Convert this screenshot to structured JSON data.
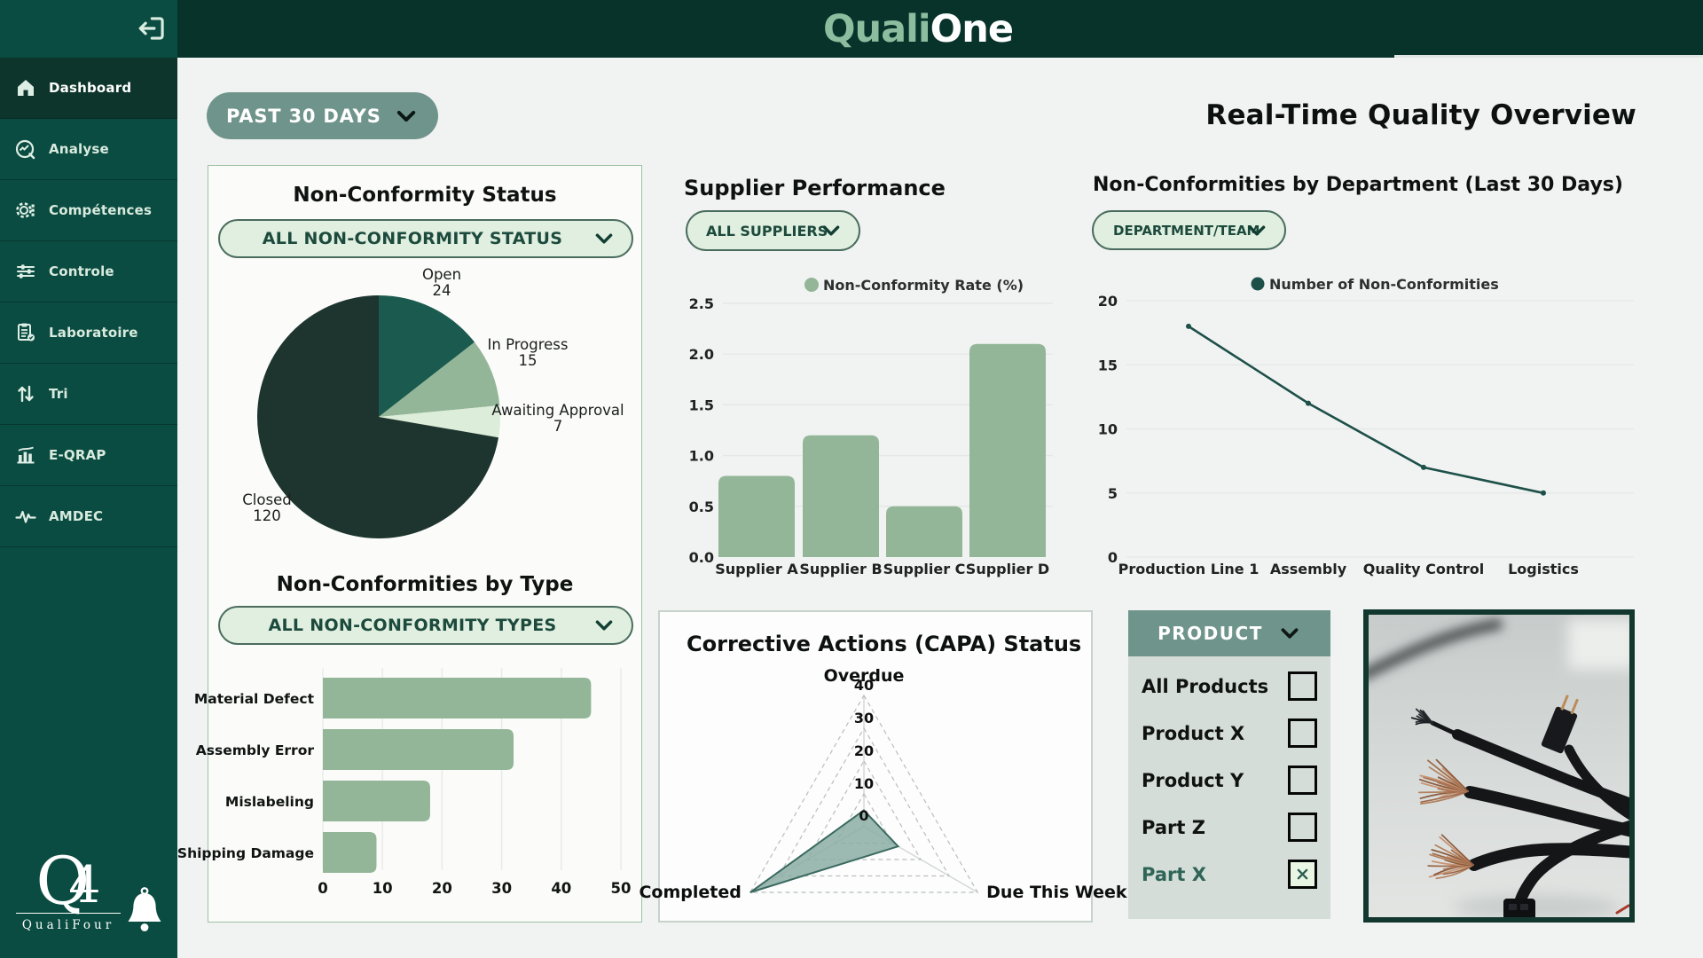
{
  "brand": {
    "part1": "Quali",
    "part2": "One"
  },
  "toolbar": {
    "time_filter": "PAST 30 DAYS",
    "page_title": "Real-Time Quality Overview"
  },
  "sidebar": {
    "items": [
      {
        "label": "Dashboard",
        "icon": "home",
        "active": true
      },
      {
        "label": "Analyse",
        "icon": "analytics",
        "active": false
      },
      {
        "label": "Compétences",
        "icon": "gear",
        "active": false
      },
      {
        "label": "Controle",
        "icon": "sliders",
        "active": false
      },
      {
        "label": "Laboratoire",
        "icon": "clipboard",
        "active": false
      },
      {
        "label": "Tri",
        "icon": "sort",
        "active": false
      },
      {
        "label": "E-QRAP",
        "icon": "chart",
        "active": false
      },
      {
        "label": "AMDEC",
        "icon": "pulse",
        "active": false
      }
    ],
    "footer_logo": {
      "q": "Q",
      "four": "4",
      "name": "QualiFour"
    }
  },
  "product_filter": {
    "header": "PRODUCT",
    "options": [
      {
        "label": "All Products",
        "checked": false
      },
      {
        "label": "Product X",
        "checked": false
      },
      {
        "label": "Product Y",
        "checked": false
      },
      {
        "label": "Part Z",
        "checked": false
      },
      {
        "label": "Part X",
        "checked": true
      }
    ]
  },
  "chart_data": [
    {
      "type": "pie",
      "title": "Non-Conformity Status",
      "filter_label": "ALL NON-CONFORMITY STATUS",
      "labels": [
        "Open",
        "In Progress",
        "Awaiting Approval",
        "Closed"
      ],
      "values": [
        24,
        15,
        7,
        120
      ],
      "colors": [
        "#1b5a4e",
        "#93b698",
        "#dcedd9",
        "#1e352f"
      ]
    },
    {
      "type": "bar",
      "title": "Supplier Performance",
      "filter_label": "ALL SUPPLIERS",
      "legend": "Non-Conformity Rate (%)",
      "categories": [
        "Supplier A",
        "Supplier B",
        "Supplier C",
        "Supplier D"
      ],
      "values": [
        0.8,
        1.2,
        0.5,
        2.1
      ],
      "ylim": [
        0,
        2.5
      ],
      "yticks": [
        0,
        0.5,
        1,
        1.5,
        2,
        2.5
      ],
      "color": "#93b698"
    },
    {
      "type": "line",
      "title": "Non-Conformities by Department (Last 30 Days)",
      "filter_label": "DEPARTMENT/TEAM",
      "legend": "Number of Non-Conformities",
      "categories": [
        "Production Line 1",
        "Assembly",
        "Quality Control",
        "Logistics"
      ],
      "values": [
        18,
        12,
        7,
        5
      ],
      "ylim": [
        0,
        20
      ],
      "yticks": [
        0,
        5,
        10,
        15,
        20
      ],
      "color": "#1d5049"
    },
    {
      "type": "bar-horizontal",
      "title": "Non-Conformities by Type",
      "filter_label": "ALL NON-CONFORMITY TYPES",
      "categories": [
        "Material Defect",
        "Assembly Error",
        "Mislabeling",
        "Shipping Damage"
      ],
      "values": [
        45,
        32,
        18,
        9
      ],
      "xlim": [
        0,
        50
      ],
      "xticks": [
        0,
        10,
        20,
        30,
        40,
        50
      ],
      "color": "#93b698"
    },
    {
      "type": "radar",
      "title": "Corrective Actions (CAPA) Status",
      "axes": [
        "Overdue",
        "Due This Week",
        "Completed"
      ],
      "values": [
        5,
        12,
        40
      ],
      "rings": [
        0,
        10,
        20,
        30,
        40
      ],
      "max": 40,
      "fill": "#8bada4",
      "stroke": "#3a6a60"
    }
  ],
  "colors": {
    "sidebar": "#0a4c41",
    "header": "#07332b",
    "accent_sage": "#93b698",
    "accent_dark": "#1d5049",
    "pill_bg": "#e0efdf",
    "pill_border": "#4a6c5e",
    "button_bg": "#6f948b",
    "panel_bg": "#d5ddd8"
  }
}
